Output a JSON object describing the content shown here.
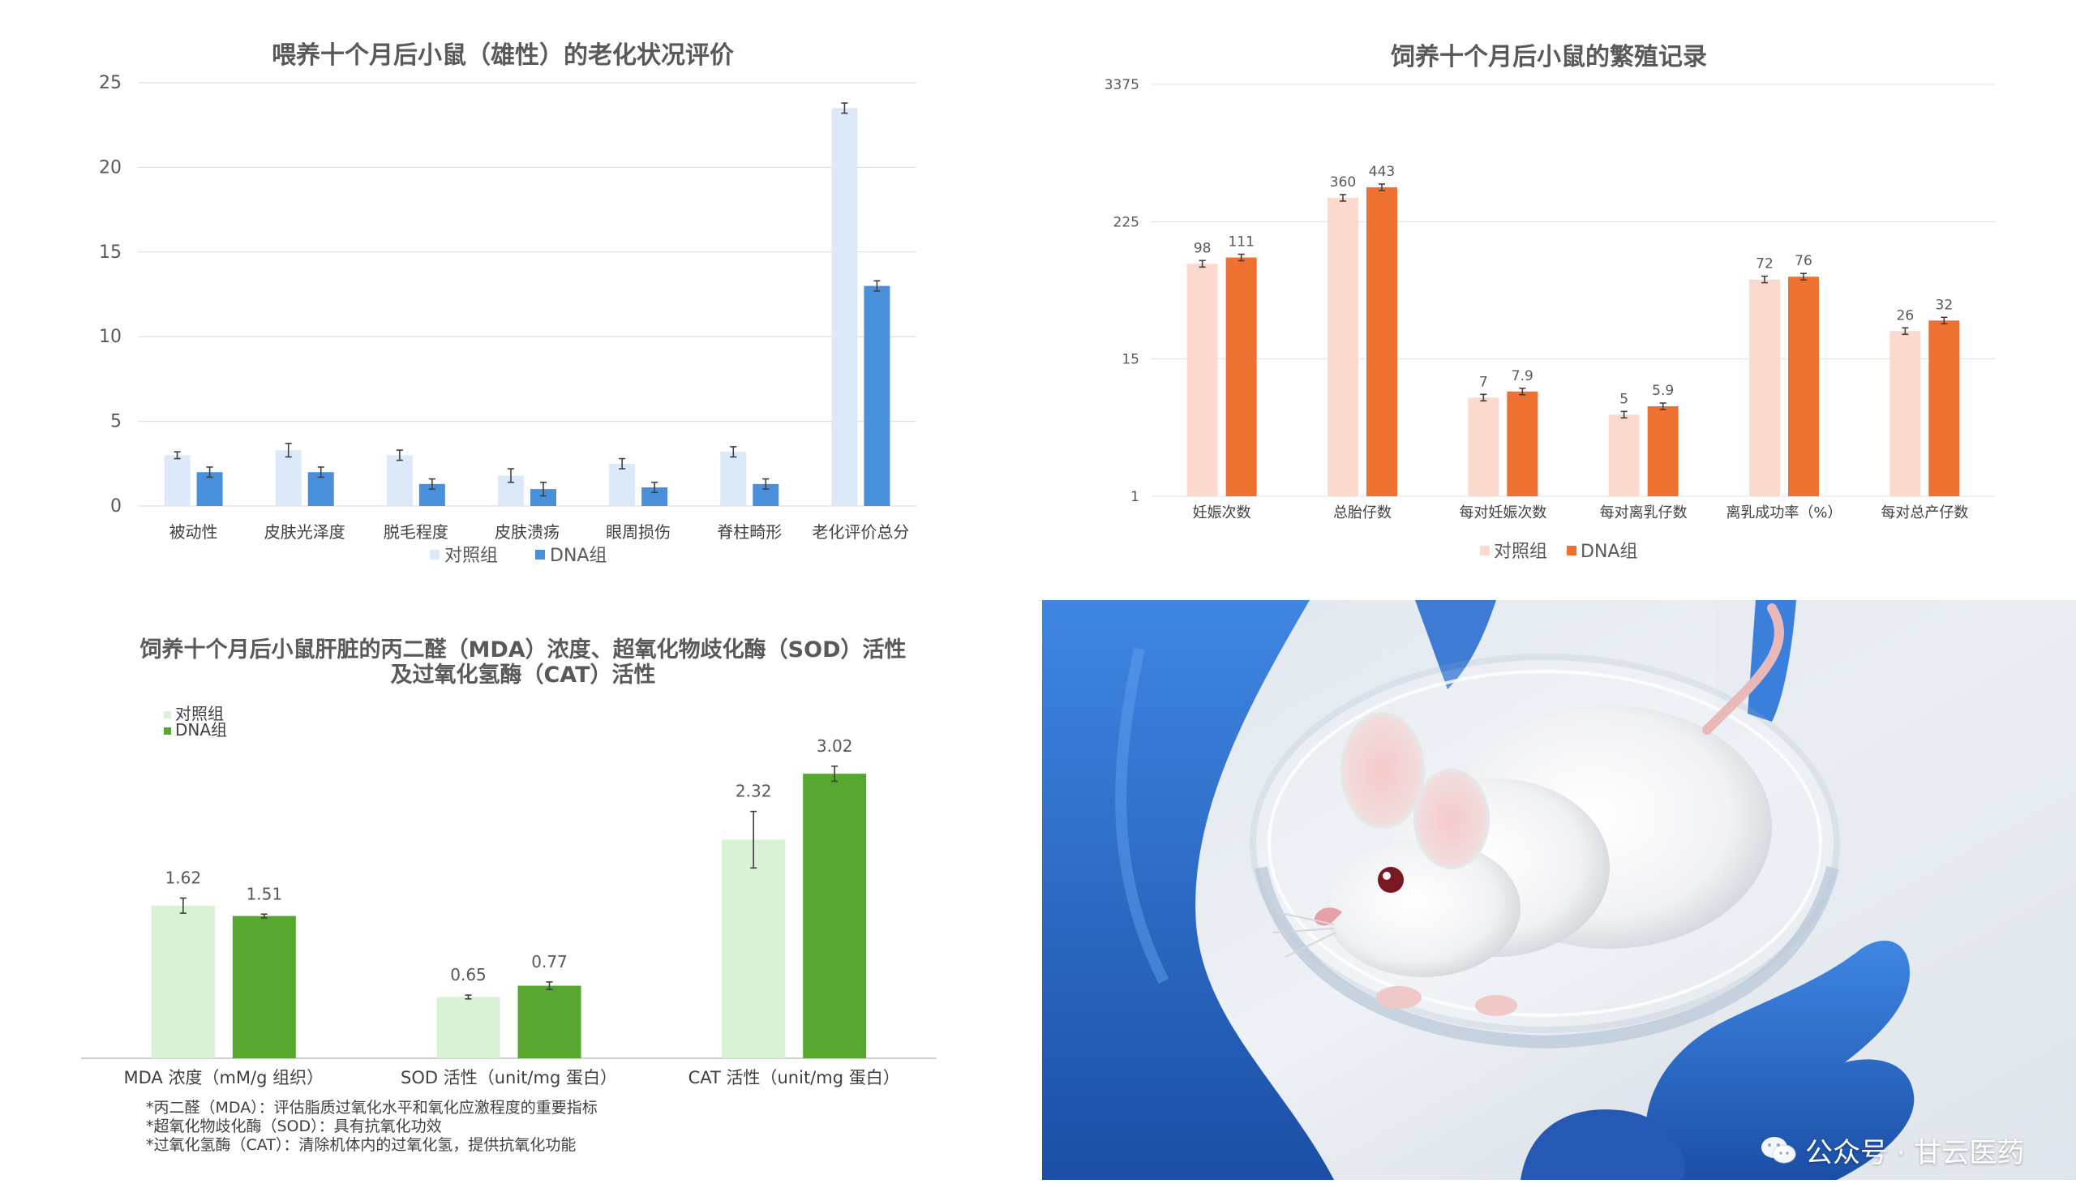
{
  "chart_data": [
    {
      "type": "bar",
      "title": "喂养十个月后小鼠（雄性）的老化状况评价",
      "categories": [
        "被动性",
        "皮肤光泽度",
        "脱毛程度",
        "皮肤溃疡",
        "眼周损伤",
        "脊柱畸形",
        "老化评价总分"
      ],
      "series": [
        {
          "name": "对照组",
          "color": "#dce9f8",
          "values": [
            3.0,
            3.3,
            3.0,
            1.8,
            2.5,
            3.2,
            23.5
          ],
          "errors": [
            0.2,
            0.4,
            0.3,
            0.4,
            0.3,
            0.3,
            0.3
          ]
        },
        {
          "name": "DNA组",
          "color": "#4a8fd9",
          "values": [
            2.0,
            2.0,
            1.3,
            1.0,
            1.1,
            1.3,
            13.0
          ],
          "errors": [
            0.3,
            0.3,
            0.3,
            0.4,
            0.3,
            0.3,
            0.3
          ]
        }
      ],
      "yticks": [
        "25",
        "20",
        "15",
        "10",
        "5",
        "0"
      ],
      "ylim": [
        0,
        25
      ],
      "grid": true,
      "legend_position": "bottom"
    },
    {
      "type": "bar",
      "title": "饲养十个月后小鼠的繁殖记录",
      "categories": [
        "妊娠次数",
        "总胎仔数",
        "每对妊娠次数",
        "每对离乳仔数",
        "离乳成功率（%）",
        "每对总产仔数"
      ],
      "series": [
        {
          "name": "对照组",
          "color": "#fbd9ce",
          "values": [
            98,
            360,
            7,
            5,
            72,
            26
          ],
          "labels": [
            "98",
            "360",
            "7",
            "5",
            "72",
            "26"
          ]
        },
        {
          "name": "DNA组",
          "color": "#ee7131",
          "values": [
            111,
            443,
            7.9,
            5.9,
            76,
            32
          ],
          "labels": [
            "111",
            "443",
            "7.9",
            "5.9",
            "76",
            "32"
          ]
        }
      ],
      "yticks": [
        "3375",
        "225",
        "15",
        "1"
      ],
      "yscale": "log15",
      "ylim": [
        1,
        3375
      ],
      "grid": true,
      "legend_position": "bottom"
    },
    {
      "type": "bar",
      "title": "饲养十个月后小鼠肝脏的丙二醛（MDA）浓度、超氧化物歧化酶（SOD）活性",
      "title_line2": "及过氧化氢酶（CAT）活性",
      "categories": [
        "MDA 浓度（mM/g 组织）",
        "SOD 活性（unit/mg 蛋白）",
        "CAT 活性（unit/mg 蛋白）"
      ],
      "series": [
        {
          "name": "对照组",
          "color": "#d9f2d6",
          "values": [
            1.62,
            0.65,
            2.32
          ],
          "labels": [
            "1.62",
            "0.65",
            "2.32"
          ],
          "errors": [
            0.08,
            0.02,
            0.3
          ]
        },
        {
          "name": "DNA组",
          "color": "#56a630",
          "values": [
            1.51,
            0.77,
            3.02
          ],
          "labels": [
            "1.51",
            "0.77",
            "3.02"
          ],
          "errors": [
            0.02,
            0.04,
            0.08
          ]
        }
      ],
      "ylim": [
        0,
        3.4
      ],
      "grid": false,
      "legend_position": "top-left"
    }
  ],
  "footnotes": [
    "*丙二醛（MDA）：评估脂质过氧化水平和氧化应激程度的重要指标",
    "*超氧化物歧化酶（SOD）：具有抗氧化功效",
    "*过氧化氢酶（CAT）：清除机体内的过氧化氢，提供抗氧化功能"
  ],
  "photo": {
    "glove_color": "#2a6fd1"
  },
  "watermark": {
    "text": "公众号 · 甘云医药"
  }
}
